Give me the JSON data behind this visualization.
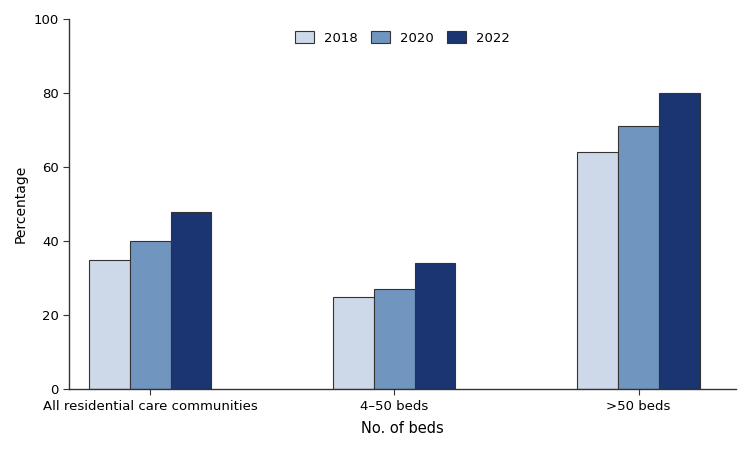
{
  "categories": [
    "All residential care communities",
    "4–50 beds",
    ">50 beds"
  ],
  "years": [
    "2018",
    "2020",
    "2022"
  ],
  "values": {
    "2018": [
      35,
      25,
      64
    ],
    "2020": [
      40,
      27,
      71
    ],
    "2022": [
      48,
      34,
      80
    ]
  },
  "colors": {
    "2018": "#cdd9e8",
    "2020": "#7096c0",
    "2022": "#1a3572"
  },
  "ylabel": "Percentage",
  "xlabel": "No. of beds",
  "ylim": [
    0,
    100
  ],
  "yticks": [
    0,
    20,
    40,
    60,
    80,
    100
  ],
  "bar_width": 0.25,
  "legend_labels": [
    "2018",
    "2020",
    "2022"
  ],
  "background_color": "#ffffff",
  "edge_color": "#333333",
  "spine_color": "#333333"
}
